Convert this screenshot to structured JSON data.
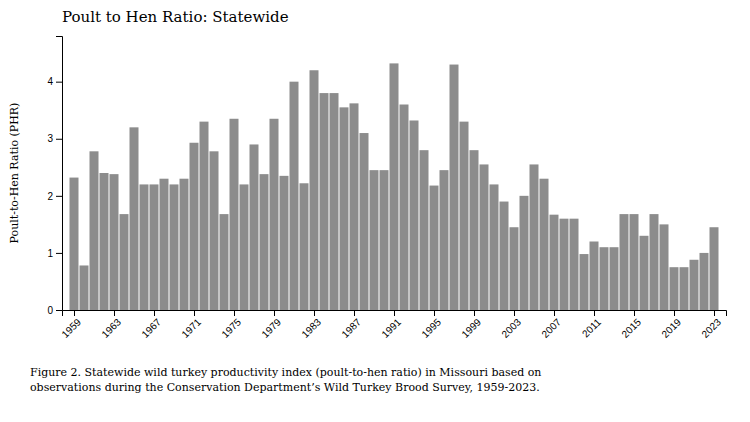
{
  "chart_data": {
    "type": "bar",
    "title": "Poult to Hen Ratio: Statewide",
    "ylabel": "Poult-to-Hen Ratio (PHR)",
    "caption": "Figure 2. Statewide wild turkey productivity index (poult-to-hen ratio) in Missouri based on\nobservations during the Conservation Department’s Wild Turkey Brood Survey, 1959-2023.",
    "x": [
      1959,
      1960,
      1961,
      1962,
      1963,
      1964,
      1965,
      1966,
      1967,
      1968,
      1969,
      1970,
      1971,
      1972,
      1973,
      1974,
      1975,
      1976,
      1977,
      1978,
      1979,
      1980,
      1981,
      1982,
      1983,
      1984,
      1985,
      1986,
      1987,
      1988,
      1989,
      1990,
      1991,
      1992,
      1993,
      1994,
      1995,
      1996,
      1997,
      1998,
      1999,
      2000,
      2001,
      2002,
      2003,
      2004,
      2005,
      2006,
      2007,
      2008,
      2009,
      2010,
      2011,
      2012,
      2013,
      2014,
      2015,
      2016,
      2017,
      2018,
      2019,
      2020,
      2021,
      2022,
      2023
    ],
    "values": [
      2.32,
      0.78,
      2.78,
      2.4,
      2.38,
      1.68,
      3.2,
      2.2,
      2.2,
      2.3,
      2.2,
      2.3,
      2.93,
      3.3,
      2.78,
      1.68,
      3.35,
      2.2,
      2.9,
      2.38,
      3.35,
      2.35,
      4.0,
      2.22,
      4.2,
      3.8,
      3.8,
      3.55,
      3.62,
      3.1,
      2.45,
      2.45,
      4.32,
      3.6,
      3.32,
      2.8,
      2.18,
      2.45,
      4.3,
      3.3,
      2.8,
      2.55,
      2.2,
      1.9,
      1.45,
      2.0,
      2.55,
      2.3,
      1.67,
      1.6,
      1.6,
      0.98,
      1.2,
      1.1,
      1.1,
      1.68,
      1.68,
      1.3,
      1.68,
      1.5,
      0.75,
      0.75,
      0.88,
      1.0,
      1.45
    ],
    "color": "#8c8c8c",
    "xlim": [
      1957.8,
      2024.2
    ],
    "xticks": [
      1959,
      1963,
      1967,
      1971,
      1975,
      1979,
      1983,
      1987,
      1991,
      1995,
      1999,
      2003,
      2007,
      2011,
      2015,
      2019,
      2023
    ],
    "ylim": [
      0,
      4.8
    ],
    "yticks": [
      0,
      1,
      2,
      3,
      4
    ],
    "grid": false
  }
}
